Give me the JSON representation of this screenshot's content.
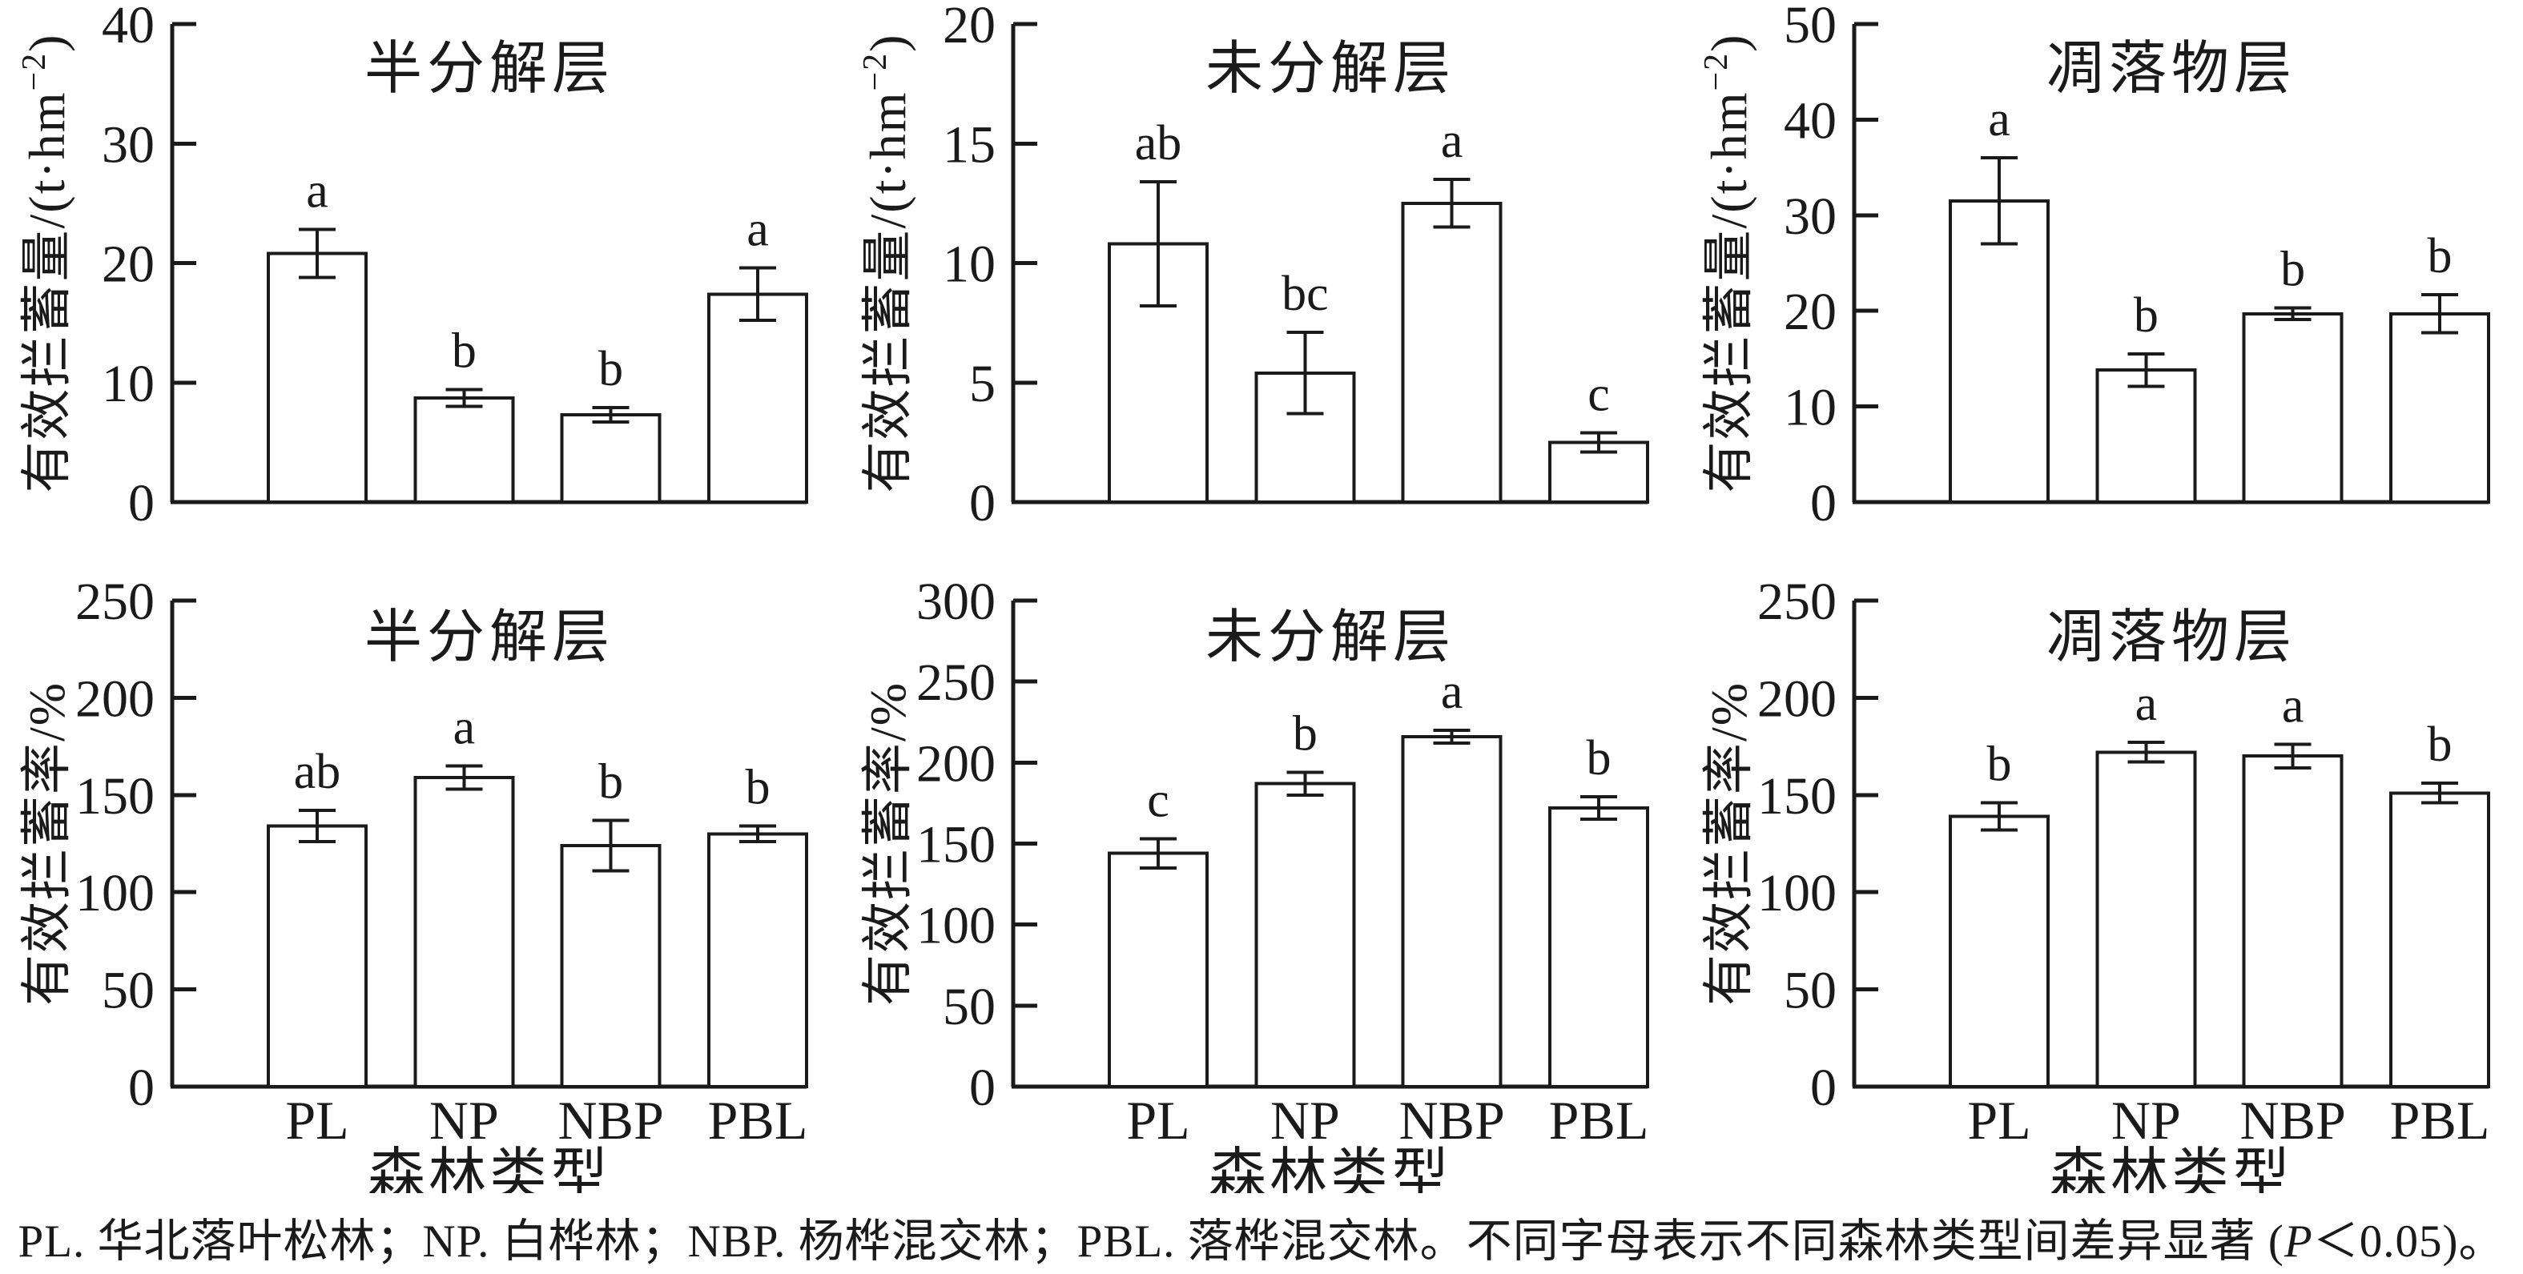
{
  "figure": {
    "categories": [
      "PL",
      "NP",
      "NBP",
      "PBL"
    ],
    "xlabel": "森林类型",
    "ink_color": "#1a1a1a",
    "background_color": "#ffffff"
  },
  "footnote": {
    "pre": "PL. 华北落叶松林；NP. 白桦林；NBP. 杨桦混交林；PBL. 落桦混交林。不同字母表示不同森林类型间差异显著 (",
    "p": "P",
    "post": "＜0.05)。"
  },
  "chart_data": [
    {
      "type": "bar",
      "row": "top",
      "title": "半分解层",
      "ylabel": "有效拦蓄量/(t·hm⁻²)",
      "ylabel_parts": [
        {
          "text": "有效拦蓄量/(t·hm"
        },
        {
          "text": "−2",
          "sup": true
        },
        {
          "text": ")"
        }
      ],
      "xlabel": "森林类型",
      "show_x_labels": false,
      "ylim": [
        0,
        40
      ],
      "yticks": [
        0,
        10,
        20,
        30,
        40
      ],
      "grid": false,
      "categories": [
        "PL",
        "NP",
        "NBP",
        "PBL"
      ],
      "values": [
        20.8,
        8.7,
        7.3,
        17.4
      ],
      "errors": [
        2.0,
        0.7,
        0.6,
        2.2
      ],
      "sig_letters": [
        "a",
        "b",
        "b",
        "a"
      ]
    },
    {
      "type": "bar",
      "row": "top",
      "title": "未分解层",
      "ylabel": "有效拦蓄量/(t·hm⁻²)",
      "ylabel_parts": [
        {
          "text": "有效拦蓄量/(t·hm"
        },
        {
          "text": "−2",
          "sup": true
        },
        {
          "text": ")"
        }
      ],
      "xlabel": "森林类型",
      "show_x_labels": false,
      "ylim": [
        0,
        20
      ],
      "yticks": [
        0,
        5,
        10,
        15,
        20
      ],
      "grid": false,
      "categories": [
        "PL",
        "NP",
        "NBP",
        "PBL"
      ],
      "values": [
        10.8,
        5.4,
        12.5,
        2.5
      ],
      "errors": [
        2.6,
        1.7,
        1.0,
        0.4
      ],
      "sig_letters": [
        "ab",
        "bc",
        "a",
        "c"
      ]
    },
    {
      "type": "bar",
      "row": "top",
      "title": "凋落物层",
      "ylabel": "有效拦蓄量/(t·hm⁻²)",
      "ylabel_parts": [
        {
          "text": "有效拦蓄量/(t·hm"
        },
        {
          "text": "−2",
          "sup": true
        },
        {
          "text": ")"
        }
      ],
      "xlabel": "森林类型",
      "show_x_labels": false,
      "ylim": [
        0,
        50
      ],
      "yticks": [
        0,
        10,
        20,
        30,
        40,
        50
      ],
      "grid": false,
      "categories": [
        "PL",
        "NP",
        "NBP",
        "PBL"
      ],
      "values": [
        31.5,
        13.8,
        19.7,
        19.7
      ],
      "errors": [
        4.5,
        1.7,
        0.6,
        2.0
      ],
      "sig_letters": [
        "a",
        "b",
        "b",
        "b"
      ]
    },
    {
      "type": "bar",
      "row": "bottom",
      "title": "半分解层",
      "ylabel": "有效拦蓄率/%",
      "ylabel_parts": [
        {
          "text": "有效拦蓄率/%"
        }
      ],
      "xlabel": "森林类型",
      "show_x_labels": true,
      "ylim": [
        0,
        250
      ],
      "yticks": [
        0,
        50,
        100,
        150,
        200,
        250
      ],
      "grid": false,
      "categories": [
        "PL",
        "NP",
        "NBP",
        "PBL"
      ],
      "values": [
        134,
        159,
        124,
        130
      ],
      "errors": [
        8,
        6,
        13,
        4
      ],
      "sig_letters": [
        "ab",
        "a",
        "b",
        "b"
      ]
    },
    {
      "type": "bar",
      "row": "bottom",
      "title": "未分解层",
      "ylabel": "有效拦蓄率/%",
      "ylabel_parts": [
        {
          "text": "有效拦蓄率/%"
        }
      ],
      "xlabel": "森林类型",
      "show_x_labels": true,
      "ylim": [
        0,
        300
      ],
      "yticks": [
        0,
        50,
        100,
        150,
        200,
        250,
        300
      ],
      "grid": false,
      "categories": [
        "PL",
        "NP",
        "NBP",
        "PBL"
      ],
      "values": [
        144,
        187,
        216,
        172
      ],
      "errors": [
        9,
        7,
        4,
        7
      ],
      "sig_letters": [
        "c",
        "b",
        "a",
        "b"
      ]
    },
    {
      "type": "bar",
      "row": "bottom",
      "title": "凋落物层",
      "ylabel": "有效拦蓄率/%",
      "ylabel_parts": [
        {
          "text": "有效拦蓄率/%"
        }
      ],
      "xlabel": "森林类型",
      "show_x_labels": true,
      "ylim": [
        0,
        250
      ],
      "yticks": [
        0,
        50,
        100,
        150,
        200,
        250
      ],
      "grid": false,
      "categories": [
        "PL",
        "NP",
        "NBP",
        "PBL"
      ],
      "values": [
        139,
        172,
        170,
        151
      ],
      "errors": [
        7,
        5,
        6,
        5
      ],
      "sig_letters": [
        "b",
        "a",
        "a",
        "b"
      ]
    }
  ]
}
